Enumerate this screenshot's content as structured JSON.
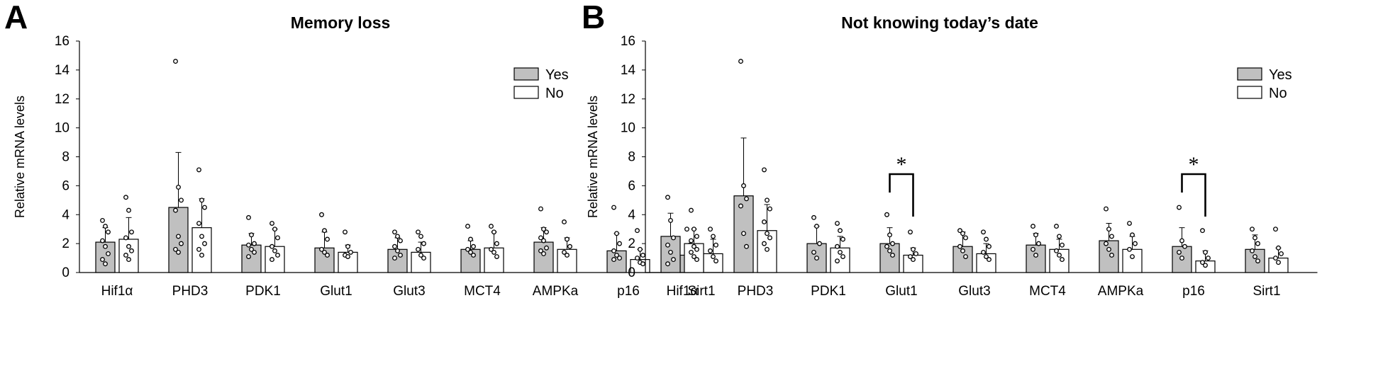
{
  "chart_data": [
    {
      "panel": "A",
      "type": "bar",
      "title": "Memory loss",
      "ylabel": "Relative mRNA levels",
      "xlabel": "",
      "ylim": [
        0,
        16
      ],
      "yticks": [
        0,
        2,
        4,
        6,
        8,
        10,
        12,
        14,
        16
      ],
      "categories": [
        "Hif1α",
        "PHD3",
        "PDK1",
        "Glut1",
        "Glut3",
        "MCT4",
        "AMPKa",
        "p16",
        "Sirt1"
      ],
      "legend": {
        "position": "top-right",
        "entries": [
          "Yes",
          "No"
        ]
      },
      "series": [
        {
          "name": "Yes",
          "color": "#c0c0c0",
          "values": [
            2.1,
            4.5,
            1.9,
            1.7,
            1.6,
            1.6,
            2.1,
            1.5,
            1.2
          ],
          "errors": [
            1.0,
            3.8,
            0.8,
            1.1,
            0.8,
            0.6,
            1.0,
            1.2,
            0.8
          ],
          "points": [
            [
              3.6,
              3.2,
              2.8,
              2.2,
              1.8,
              1.3,
              0.9,
              0.6
            ],
            [
              14.6,
              5.9,
              5.0,
              4.3,
              2.5,
              2.0,
              1.6,
              1.4
            ],
            [
              3.8,
              2.6,
              2.0,
              1.9,
              1.6,
              1.4,
              1.1
            ],
            [
              4.0,
              2.9,
              2.3,
              1.6,
              1.4,
              1.2
            ],
            [
              2.8,
              2.5,
              2.2,
              1.8,
              1.5,
              1.2,
              1.0
            ],
            [
              3.2,
              2.3,
              1.8,
              1.6,
              1.4,
              1.2
            ],
            [
              4.4,
              3.0,
              2.8,
              2.4,
              2.2,
              1.7,
              1.5,
              1.3
            ],
            [
              4.5,
              2.7,
              2.0,
              1.5,
              1.2,
              1.0,
              0.9
            ],
            [
              3.0,
              1.9,
              1.4,
              1.1,
              0.9,
              0.7
            ]
          ]
        },
        {
          "name": "No",
          "color": "#ffffff",
          "values": [
            2.3,
            3.1,
            1.8,
            1.4,
            1.4,
            1.7,
            1.6,
            0.9,
            1.3
          ],
          "errors": [
            1.5,
            2.0,
            1.2,
            0.5,
            0.7,
            1.1,
            0.8,
            0.7,
            1.0
          ],
          "points": [
            [
              5.2,
              4.3,
              2.8,
              2.4,
              1.8,
              1.5,
              1.2,
              0.9
            ],
            [
              7.1,
              5.0,
              4.5,
              3.4,
              2.5,
              2.0,
              1.6,
              1.2
            ],
            [
              3.4,
              3.0,
              2.4,
              1.8,
              1.5,
              1.2,
              0.9
            ],
            [
              2.8,
              1.8,
              1.4,
              1.2,
              1.1
            ],
            [
              2.8,
              2.5,
              2.0,
              1.6,
              1.2,
              1.0
            ],
            [
              3.2,
              2.8,
              2.0,
              1.6,
              1.4,
              1.1
            ],
            [
              3.5,
              2.3,
              1.8,
              1.4,
              1.2
            ],
            [
              2.9,
              1.6,
              1.2,
              1.0,
              0.7,
              0.6
            ],
            [
              3.0,
              2.5,
              1.9,
              1.5,
              1.1,
              0.8
            ]
          ]
        }
      ],
      "significance": []
    },
    {
      "panel": "B",
      "type": "bar",
      "title": "Not knowing today’s date",
      "ylabel": "Relative mRNA levels",
      "xlabel": "",
      "ylim": [
        0,
        16
      ],
      "yticks": [
        0,
        2,
        4,
        6,
        8,
        10,
        12,
        14,
        16
      ],
      "categories": [
        "Hif1α",
        "PHD3",
        "PDK1",
        "Glut1",
        "Glut3",
        "MCT4",
        "AMPKa",
        "p16",
        "Sirt1"
      ],
      "legend": {
        "position": "top-right",
        "entries": [
          "Yes",
          "No"
        ]
      },
      "series": [
        {
          "name": "Yes",
          "color": "#c0c0c0",
          "values": [
            2.5,
            5.3,
            2.0,
            2.0,
            1.8,
            1.9,
            2.2,
            1.8,
            1.6
          ],
          "errors": [
            1.6,
            4.0,
            1.2,
            1.1,
            1.0,
            0.8,
            1.2,
            1.3,
            1.0
          ],
          "points": [
            [
              5.2,
              3.6,
              2.4,
              1.9,
              1.4,
              0.9,
              0.6
            ],
            [
              14.6,
              6.0,
              5.1,
              4.6,
              2.7,
              1.8
            ],
            [
              3.8,
              3.2,
              2.0,
              1.4,
              1.0
            ],
            [
              4.0,
              2.6,
              2.0,
              1.8,
              1.5,
              1.2
            ],
            [
              2.9,
              2.7,
              2.4,
              1.8,
              1.5,
              1.1
            ],
            [
              3.2,
              2.6,
              2.0,
              1.6,
              1.2
            ],
            [
              4.4,
              3.0,
              2.5,
              2.0,
              1.6,
              1.2
            ],
            [
              4.5,
              2.2,
              1.8,
              1.4,
              1.0
            ],
            [
              3.0,
              2.4,
              2.0,
              1.5,
              1.1,
              0.8
            ]
          ]
        },
        {
          "name": "No",
          "color": "#ffffff",
          "values": [
            2.0,
            2.9,
            1.7,
            1.2,
            1.3,
            1.6,
            1.6,
            0.8,
            1.0
          ],
          "errors": [
            1.0,
            1.8,
            0.8,
            0.5,
            0.7,
            0.7,
            0.9,
            0.7,
            0.7
          ],
          "points": [
            [
              4.3,
              3.0,
              2.5,
              2.2,
              1.8,
              1.6,
              1.4,
              1.1,
              0.9
            ],
            [
              7.1,
              5.0,
              4.4,
              3.5,
              2.7,
              2.4,
              2.0,
              1.6
            ],
            [
              3.4,
              2.9,
              2.3,
              1.8,
              1.4,
              1.1,
              0.8
            ],
            [
              2.8,
              1.6,
              1.3,
              1.1,
              0.9
            ],
            [
              2.8,
              2.3,
              1.8,
              1.4,
              1.1,
              0.9
            ],
            [
              3.2,
              2.5,
              1.9,
              1.5,
              1.2,
              0.9
            ],
            [
              3.4,
              2.6,
              2.0,
              1.6,
              1.1
            ],
            [
              2.9,
              1.4,
              1.0,
              0.7,
              0.5
            ],
            [
              3.0,
              1.7,
              1.3,
              1.0,
              0.7
            ]
          ]
        }
      ],
      "significance": [
        {
          "category_index": 3,
          "label": "*"
        },
        {
          "category_index": 7,
          "label": "*"
        }
      ]
    }
  ]
}
